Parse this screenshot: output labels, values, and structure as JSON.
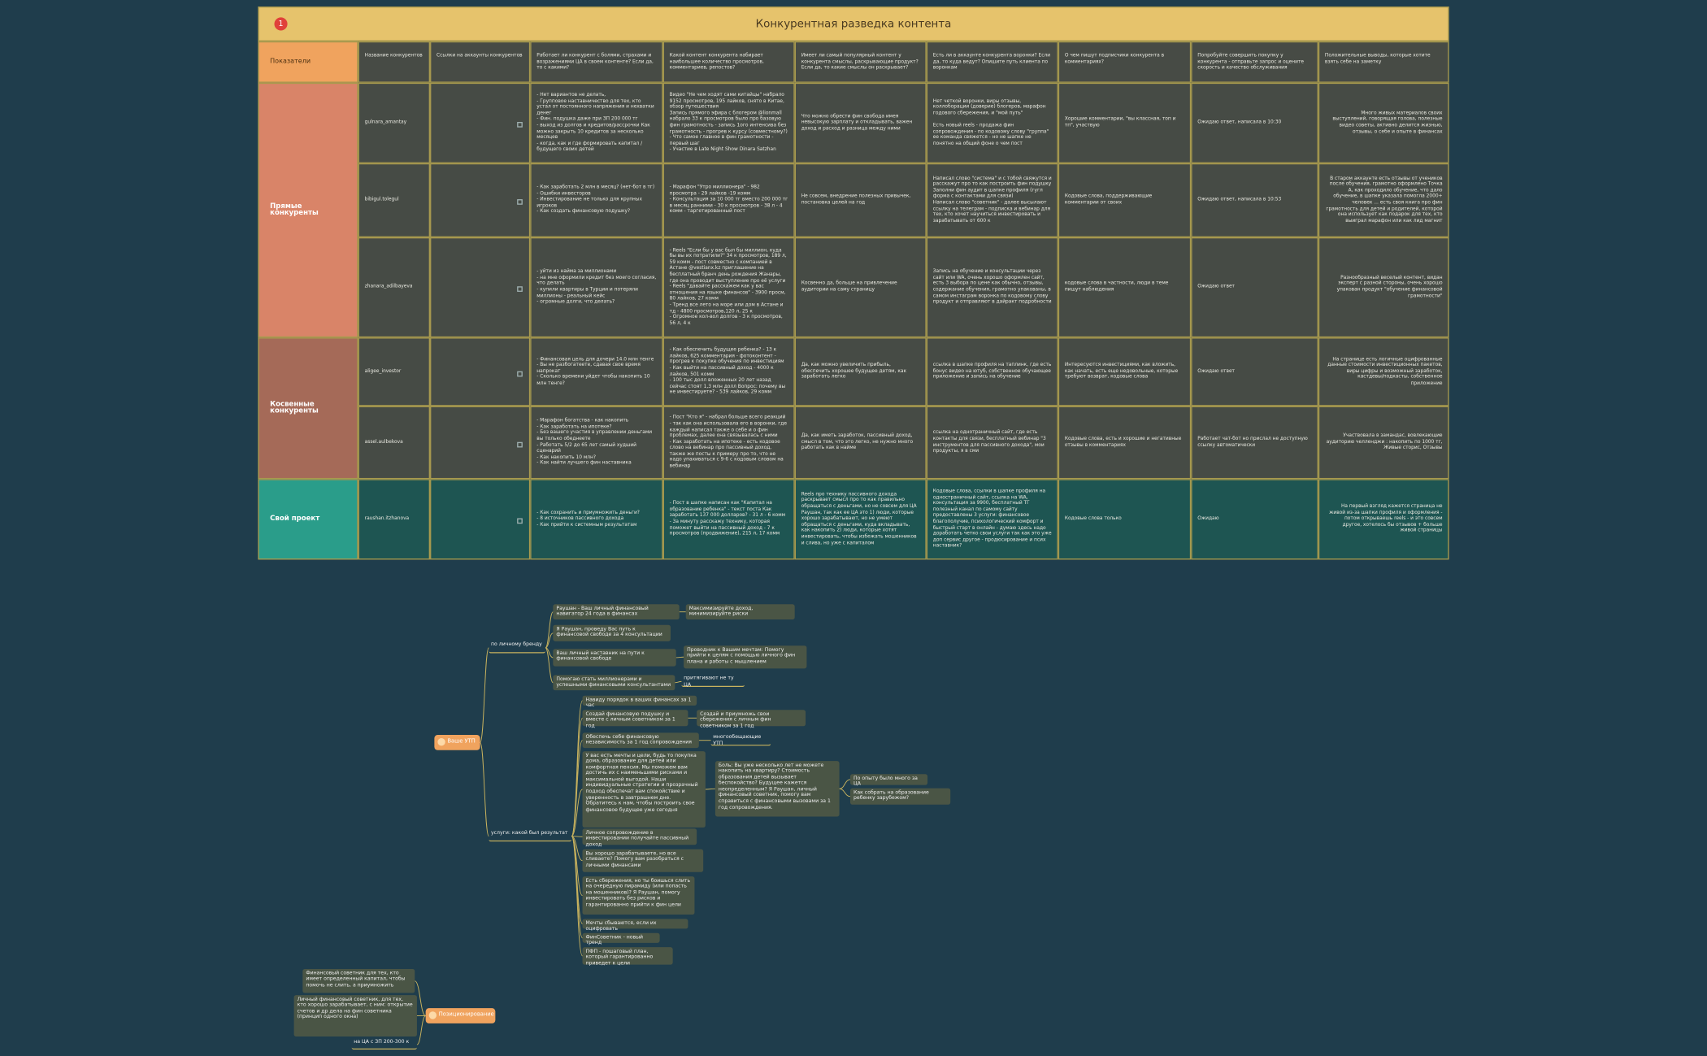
{
  "header": {
    "badge": "1",
    "title": "Конкурентная разведка контента"
  },
  "table": {
    "columns": [
      "Показатели",
      "Название конкурентов",
      "Ссылки на аккаунты конкурентов",
      "Работает ли конкурент с болями, страхами и возражениями ЦА в своем контенте? Если да, то с какими?",
      "Какой контент конкурента набирает наибольшее количество просмотров, комментариев, репостов?",
      "Имеет ли самый популярный контент у конкурента смыслы, раскрывающие продукт?\nЕсли да, то какие смыслы он раскрывает?",
      "Есть ли в аккаунте конкурента воронки? Если да, то куда ведут? Опишите путь клиента по воронкам",
      "О чем пишут подписчики конкурента в комментариях?",
      "Попробуйте совершить покупку у конкурента - отправьте запрос и оцените скорость и качество обслуживания",
      "Положительные выводы, которые хотите взять себе на заметку"
    ],
    "groups": [
      {
        "name": "Прямые конкуренты",
        "rows": [
          {
            "name": "gulnara_amantay",
            "pains": "- Нет вариантов не делать,\n- Групповое наставничество для тех, кто устал от постоянного напряжения и нехватки денег\n- Фин. подушка даже при ЗП 200 000 тг\n- выход из долгов и кредитов/рассрочки Как можно закрыть 10 кредитов за несколько месяцев\n- когда, как и где формировать капитал / будущего своих детей",
            "content": "Видео \"Не чем ходят сами китайцы\" набрало 9152 просмотров, 195 лайков, снято в Китае, обзор путешествия\nЗапись прямого эфира с блогером @lionmall набрало 33 к просмотров было про базовую фин грамотность - запись 1ого интенсива без грамотность - прогрев к курсу (совместному?)\n- Что самое главное в фин грамотности - первый шаг\n- Участие в Late Night Show Dinara Satzhan",
            "meanings": "Что можно обрести фин свобода имея невысокую зарплату и откладывать, важен доход и расход и разница между ними",
            "funnels": "Нет четкой воронки, виры отзывы, коллоборации (доверие) блогеров, марафон годового сбережения, и \"мой путь\"\n\nЕсть новый reels - продажа фин сопровождения - по кодовому слову \"группа\" ее команда свяжется - но не шапке не понятно на общий фоне о чем пост",
            "comments": "Хорошие комментарии, \"вы классная, топ и тп\", участвую",
            "purchase": "Ожидаю ответ, написала в 10:30",
            "conclusions": "Много живых материалов своих выступлений, говорящая голова, полезные видео советы, активно делится жизнью, отзывы, о себе и опыте в финансах"
          },
          {
            "name": "bibigul.tolegul",
            "pains": "- Как заработать 2 млн в месяц? (нет-бот в тг)\n- Ошибки инвесторов\n- Инвестирование не только для крупных игроков\n- Как создать финансовую подушку?",
            "content": "- Марафон \"Утро миллионера\" - 982 просмотра - 29 лайков -19 комм\n- Консультация за 10 000 тг вместо 200 000 тг в месяц ранними - 30 к просмотров - 38 л - 4 комм - таргетированный пост",
            "meanings": "Не совсем, внедрение полезных привычек, постановка целей на год",
            "funnels": "Написал слово \"система\" и с тобой свяжутся и расскажут про то как построить фин подушку\nЗаполни фин аудит в шапке профиля (гугл форма с контактами для связи)\nНаписал слово \"советник\" - далее высылают ссылку на телеграм - подписка и вебинар для тех, кто хочет научиться инвестировать и зарабатывать от 600 к",
            "comments": "Кодовые слова, поддерживающие комментарии от своих",
            "purchase": "Ожидаю ответ, написала в 10:53",
            "conclusions": "В старом аккаунте есть отзывы от учеников после обучения, грамотно оформлено Точка А, как проходило обучение, что дало обучение, в шапке указала помогла 2000+ человек ... есть своя книга про фин грамотность для детей и родителей, которой она использует как подарок для тех, кто выиграл марафон или как лид магнит"
          },
          {
            "name": "zhanara_adilbayeva",
            "pains": "- уйти из найма за миллионами\n- на мне оформили кредит без моего согласия, что делать\n- купили квартиры в Турции и потеряли миллионы - реальный кейс\n- огромные долги, что делать?",
            "content": "- Reels \"Если бы у вас был бы миллион, куда бы вы их потратили?\" 34 к просмотров, 189 л, 59 комм - пост совместно с компанией в Астане @vestianx.kz приглашение на бесплатный бранч день рождения Жанары, где она проводит выступление про её услуги\n- Reels \"давайте расскажем как у вас отношения на языке финансов\" - 3900 просм, 80 лайков, 27 комм\n- Тренд все лето на море или дом в Астане и тд - 4800 просмотров,120 л, 25 к\n- Огромное кол-вол долгов - 3 к просмотров, 56 л, 4 к",
            "meanings": "Косвенно да, больше на привлечение аудитории на саму страницу",
            "funnels": "Запись на обучение и консультации через сайт или WA, очень хорошо оформлен сайт, есть 3 выбора по цене как обычно, отзывы, содержание обучения, грамотно упакованы, в самом инстаграм воронка по кодовому слову продукт и отправляют в дайракт подробности",
            "comments": "кодовые слова в частности, люди в теме пишут наблюдения",
            "purchase": "Ожидаю ответ",
            "conclusions": "Разнообразный веселый контент, видан эксперт с разной стороны, очень хорошо упакован продукт \"обучение финансовой грамотности\""
          }
        ]
      },
      {
        "name": "Косвенные конкуренты",
        "rows": [
          {
            "name": "aligee_investor",
            "pains": "- Финансовая цель для дочери 14.0 млн тенге\n- Вы не разбогатеете, сдавая свое время напрокат\n- Сколько времени уйдет чтобы накопить 10 млн тенге?",
            "content": "- Как обеспечить будущее ребенка? - 13 к лайков, 625 комментария - фотоконтент - прогрев к покупке обучения по инвестициям\n- Как выйти на пассивный доход - 4000 к лайков, 501 комм\n- 100 тыс долл вложенных 20 лет назад сейчас стоят 1,3 млн долл Вопрос: почему вы не инвестируете? - 539 лайков, 29 комм",
            "meanings": "Да, как можно увеличить прибыль, обеспечить хорошее будущее детям, как заработать легко",
            "funnels": "ссылка в шапке профиля на таплинк, где есть бонус видео на ютуб, собственное обучающее приложение и запись на обучение",
            "comments": "Интересуются инвестициями, как вложить, как начать, есть еще недовольные, которые требуют возврат, кодовые слова",
            "purchase": "Ожидаю ответ",
            "conclusions": "На странице есть логичные оцифрованные данные стоимости инвестиционных пакетов, виры цифры и возможный заработок, кастдевы/подкасты, собственное приложение"
          },
          {
            "name": "assel.aulbekova",
            "pains": "- Марафон богатства - как накопить\n- Как заработать на ипотеке?\n- Без вашего участия в управлении деньгами вы только обеднеете\n- Работать 5/2 до 65 лет самый худший сценарий\n- Как накопить 10 млн?\n- Как найти лучшего фин наставника",
            "content": "- Пост \"Кто я\" - набрал больше всего реакций\n- так как она использовала его в воронки, где каждый написал также о себе и о фин проблемах, далее она связывалась с ними\n- Как заработать на ипотеке - есть кодовое слово на вебинар про пассивный доход, также же посты к примеру про то, что не надо упахиваться с 9-6 с кодовым словом на вебинар",
            "meanings": "Да, как иметь заработок, пассивный доход, смысл в том, что это легко, не нужно много работать как в найме",
            "funnels": "ссылка на однотраничный сайт, где есть контакты для связи, бесплатный вебинар \"3 инструментов для пассивного дохода\", мои продукты, я в сми",
            "comments": "Кодовые слова, есть и хорошие и негативные отзывы в комментариях",
            "purchase": "Работает чат-бот но прислал не доступную ссылку автоматически",
            "conclusions": "Участвовала в замандас, вовлекающие аудиторию челленджи : накопить по 1000 тг, Живые сторис, Отзывы"
          }
        ]
      },
      {
        "name": "Свой проект",
        "rows": [
          {
            "name": "raushan.itzhanova",
            "pains": "- Как сохранить и приумножить деньги?\n- 8 источников пассивного дохода\n- Как прийти к системным результатам",
            "content": "- Пост в шапке написан как \"Капитал на образование ребенка\" - текст поста Как заработать 137 000 долларов? - 31 л - 6 комм\n- За минуту расскажу технику, которая поможет выйти на пассивный доход - 7 к просмотров (продвижение), 215 л, 17 комм",
            "meanings": "Reels про технику пассивного дохода раскрывает смысл про то как правильно обращаться с деньгами, но не совсем для ЦА Раушан, так как ее ЦА это 1) люди, которые хорошо зарабатывают, но не умеют обращаться с деньгами, куда вкладывать, как накопить 2) люди, которые хотят инвестировать, чтобы избежать мошенников и слива, но уже с капиталом",
            "funnels": "Кодовые слова, ссылки в шапке профиля на одностраничный сайт, ссылка на WA, консультация за 9900, бесплатный ТГ полезный канал по самому сайту предоставлены 3 услуги: финансовое благополучие, психологический комфорт и быстрый старт в онлайн - думаю здесь надо доработать четко свои услуги так как это уже доп сервис другое - продюсирование и псих наставник?",
            "comments": "Кодовые слова только",
            "purchase": "Ожидаю",
            "conclusions": "На первый взгляд кажется страница не живой из-за шапки профиля и оформления - потом открываешь reels - и это совсем другое, хотелось бы отзывов + больше живой страницы"
          }
        ]
      }
    ]
  },
  "mindmap": {
    "roots": [
      {
        "label": "Ваше УТП",
        "children": [
          {
            "label": "по личному бренду",
            "children": [
              {
                "label": "Раушан - Ваш личный финансовый навигатор 24 года в финансах",
                "children": [
                  {
                    "label": "Максимизируйте доход, минимизируйте риски"
                  }
                ]
              },
              {
                "label": "Я Раушан, проведу Вас путь к финансовой свободе за 4 консультации"
              },
              {
                "label": "Ваш личный наставник на пути к финансовой свободе",
                "children": [
                  {
                    "label": "Проводник к Вашим мечтам: Помогу прийти к целям с помощью личного фин плана и работы с мышлением"
                  }
                ]
              },
              {
                "label": "Помогаю стать миллионерами и успешными финансовыми консультантами",
                "children": [
                  {
                    "label": "притягивают не ту ЦА"
                  }
                ]
              }
            ]
          },
          {
            "label": "услуги: какой был результат",
            "children": [
              {
                "label": "Навиду порядок в ваших финансах за 1 час"
              },
              {
                "label": "Создай финансовую подушку и вместе с личным советником за 1 год",
                "children": [
                  {
                    "label": "Создай и приумножь свои сбережения с личным фин советником за 1 год"
                  }
                ]
              },
              {
                "label": "Обеспечь себе финансовую независимость за 1 год сопровождения",
                "children": [
                  {
                    "label": "многообещающие УТП"
                  }
                ]
              },
              {
                "label": "У вас есть мечты и цели, будь то покупка дома, образование для детей или комфортная пенсия. Мы поможем вам достичь их с наименьшими рисками и максимальной выгодой. Наши индивидуальные стратегии и прозрачный подход обеспечат вам спокойствие и уверенность в завтрашнем дне. Обратитесь к нам, чтобы построить свое финансовое будущее уже сегодня",
                "children": [
                  {
                    "label": "Боль: Вы уже несколько лет не можете накопить на квартиру? Стоимость образования детей вызывает беспокойство? Будущее кажется неопределенным? Я Раушан, личный финансовый советник, помогу вам справиться с финансовыми вызовами за 1 год сопровождения.",
                    "children": [
                      {
                        "label": "По опыту было много за ЦА"
                      },
                      {
                        "label": "Как собрать на образование ребенку зарубежом?"
                      }
                    ]
                  }
                ]
              },
              {
                "label": "Личное сопровождение в инвестировании получайте пассивный доход"
              },
              {
                "label": "Вы хорошо зарабатываете, но все сливаете? Помогу вам разобраться с личными финансами"
              },
              {
                "label": "Есть сбережения, но ты боишься слить на очередную пирамиду (или попасть на мошенников)? Я Раушан, помогу инвестировать без рисков и гарантированно прийти к фин цели"
              },
              {
                "label": "Мечты сбываются, если их оцифровать"
              },
              {
                "label": "ФинСоветник - новый тренд"
              },
              {
                "label": "ПФП - пошаговый план, который гарантированно приведет к цели"
              }
            ]
          }
        ]
      },
      {
        "label": "Позиционирование",
        "children": [
          {
            "label": "Финансовый советник для тех, кто имеет определенный капитал, чтобы помочь не слить, а приумножить"
          },
          {
            "label": "Личный финансовый советник, для тех, кто хорошо зарабатывает, с ним: открытие счетов и др дела на фин советника (принцип одного окна)"
          },
          {
            "label": "на ЦА с ЗП 200-300 к"
          }
        ]
      }
    ]
  }
}
